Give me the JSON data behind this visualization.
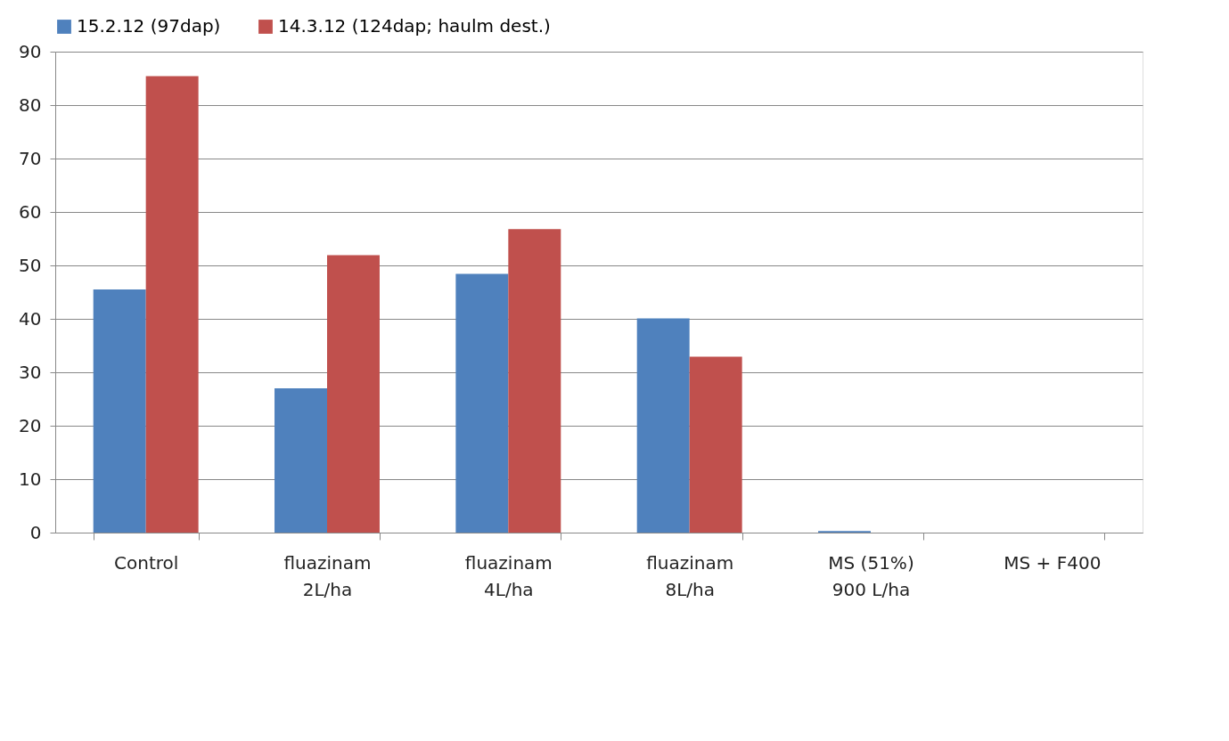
{
  "chart_data": {
    "type": "bar",
    "categories": [
      "Control",
      "fluazinam\n2L/ha",
      "fluazinam\n4L/ha",
      "fluazinam\n8L/ha",
      "MS (51%)\n900 L/ha",
      "MS + F400"
    ],
    "series": [
      {
        "name": "15.2.12 (97dap)",
        "color": "#4f81bd",
        "values": [
          45.5,
          27.0,
          48.4,
          40.1,
          0.3,
          0
        ]
      },
      {
        "name": "14.3.12 (124dap; haulm dest.)",
        "color": "#c0504d",
        "values": [
          85.4,
          51.9,
          56.8,
          32.9,
          0,
          0
        ]
      }
    ],
    "ylim": [
      0,
      90
    ],
    "yticks": [
      0,
      10,
      20,
      30,
      40,
      50,
      60,
      70,
      80,
      90
    ],
    "grid": "y",
    "legend": "top"
  }
}
